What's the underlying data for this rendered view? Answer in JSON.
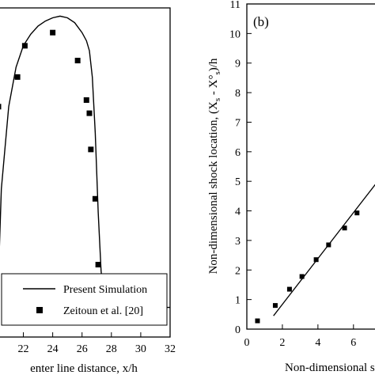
{
  "chart_data": [
    {
      "type": "line",
      "title": "",
      "xlabel": "enter line distance, x/h",
      "ylabel": "",
      "xlim": [
        20.3,
        32
      ],
      "x_ticks": [
        22,
        24,
        26,
        28,
        30,
        32
      ],
      "x_tick_labels": [
        "22",
        "24",
        "26",
        "28",
        "30",
        "32"
      ],
      "series": [
        {
          "name": "Present Simulation",
          "style": "line",
          "x": [
            20.3,
            20.5,
            21.0,
            21.5,
            22.0,
            22.5,
            23.0,
            23.5,
            24.0,
            24.5,
            25.0,
            25.5,
            26.0,
            26.3,
            26.5,
            26.7,
            26.9,
            27.1,
            27.3,
            27.5,
            27.7,
            27.9,
            28.1,
            28.5,
            29.0,
            30.0,
            31.0,
            32.0
          ],
          "y": [
            0.18,
            0.45,
            0.7,
            0.82,
            0.885,
            0.92,
            0.945,
            0.96,
            0.97,
            0.975,
            0.97,
            0.955,
            0.925,
            0.9,
            0.87,
            0.79,
            0.62,
            0.38,
            0.2,
            0.12,
            0.095,
            0.09,
            0.09,
            0.09,
            0.09,
            0.09,
            0.09,
            0.09
          ]
        },
        {
          "name": "Zeitoun et al. [20]",
          "style": "markers",
          "x": [
            20.3,
            21.6,
            22.1,
            24.0,
            25.7,
            26.3,
            26.5,
            26.6,
            26.9,
            27.1,
            28.1,
            30.5
          ],
          "y": [
            0.7,
            0.79,
            0.885,
            0.925,
            0.84,
            0.72,
            0.68,
            0.57,
            0.42,
            0.22,
            0.09,
            0.09
          ]
        }
      ],
      "legend": {
        "placement": "bottom-right",
        "entries": [
          "Present Simulation",
          "Zeitoun et al. [20]"
        ]
      }
    },
    {
      "type": "scatter",
      "title": "",
      "panel_label": "(b)",
      "xlabel": "Non-dimensional s",
      "ylabel": "Non-dimensional shock location, (X",
      "ylabel_sub_1": "s",
      "ylabel_mid": " - X°",
      "ylabel_sub_2": "s",
      "ylabel_end": ")/h",
      "xlim": [
        0,
        7.3
      ],
      "ylim": [
        0,
        11
      ],
      "x_ticks": [
        0,
        2,
        4,
        6
      ],
      "x_tick_labels": [
        "0",
        "2",
        "4",
        "6"
      ],
      "y_ticks": [
        0,
        1,
        2,
        3,
        4,
        5,
        6,
        7,
        8,
        9,
        10,
        11
      ],
      "y_tick_labels": [
        "0",
        "1",
        "2",
        "3",
        "4",
        "5",
        "6",
        "7",
        "8",
        "9",
        "10",
        "11"
      ],
      "series": [
        {
          "style": "markers",
          "x": [
            0.6,
            1.6,
            2.4,
            3.1,
            3.9,
            4.6,
            5.5,
            6.2
          ],
          "y": [
            0.28,
            0.8,
            1.35,
            1.78,
            2.35,
            2.85,
            3.42,
            3.93
          ]
        },
        {
          "style": "line",
          "x": [
            1.5,
            7.3
          ],
          "y": [
            0.45,
            4.95
          ]
        }
      ]
    }
  ]
}
